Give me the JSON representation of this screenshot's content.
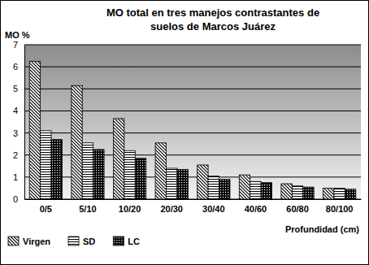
{
  "chart_data": {
    "type": "bar",
    "title": "MO total en tres manejos contrastantes de suelos de Marcos Juárez",
    "y_label": "MO %",
    "x_label": "Profundidad (cm)",
    "categories": [
      "0/5",
      "5/10",
      "10/20",
      "20/30",
      "30/40",
      "40/60",
      "60/80",
      "80/100"
    ],
    "series": [
      {
        "name": "Virgen",
        "color": "#000000",
        "values": [
          6.25,
          5.15,
          3.65,
          2.55,
          1.55,
          1.1,
          0.7,
          0.5
        ]
      },
      {
        "name": "SD",
        "color": "#000000",
        "values": [
          3.1,
          2.55,
          2.2,
          1.4,
          1.05,
          0.8,
          0.6,
          0.5
        ]
      },
      {
        "name": "LC",
        "color": "#000000",
        "values": [
          2.7,
          2.25,
          1.85,
          1.35,
          0.9,
          0.75,
          0.55,
          0.45
        ]
      }
    ],
    "ylim": [
      0,
      7
    ],
    "yticks": [
      0,
      1,
      2,
      3,
      4,
      5,
      6,
      7
    ],
    "grid": true,
    "legend": "bottom"
  }
}
